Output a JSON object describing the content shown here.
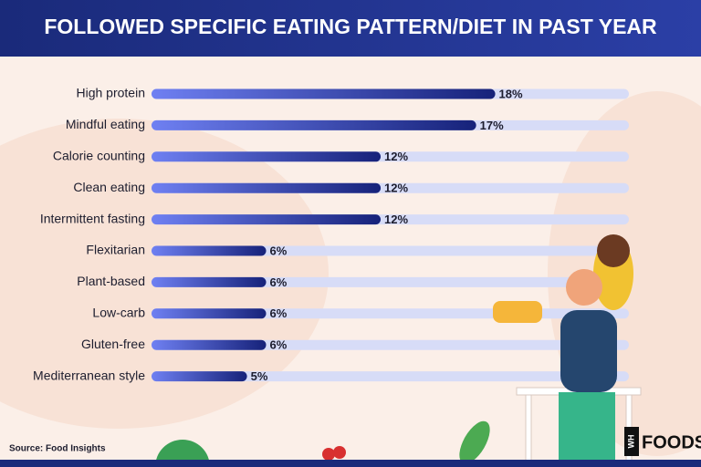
{
  "chart_data": {
    "type": "bar",
    "orientation": "horizontal",
    "title": "FOLLOWED SPECIFIC EATING PATTERN/DIET IN PAST YEAR",
    "categories": [
      "High protein",
      "Mindful eating",
      "Calorie counting",
      "Clean eating",
      "Intermittent fasting",
      "Flexitarian",
      "Plant-based",
      "Low-carb",
      "Gluten-free",
      "Mediterranean style"
    ],
    "values": [
      18,
      17,
      12,
      12,
      12,
      6,
      6,
      6,
      6,
      5
    ],
    "value_labels": [
      "18%",
      "17%",
      "12%",
      "12%",
      "12%",
      "6%",
      "6%",
      "6%",
      "6%",
      "5%"
    ],
    "xlim": [
      0,
      25
    ],
    "color": "#1b2a8c",
    "track_color": "#d7dcf7",
    "source": "Source: Food Insights"
  },
  "logo": {
    "mark": "WH",
    "text": "FOODS"
  }
}
